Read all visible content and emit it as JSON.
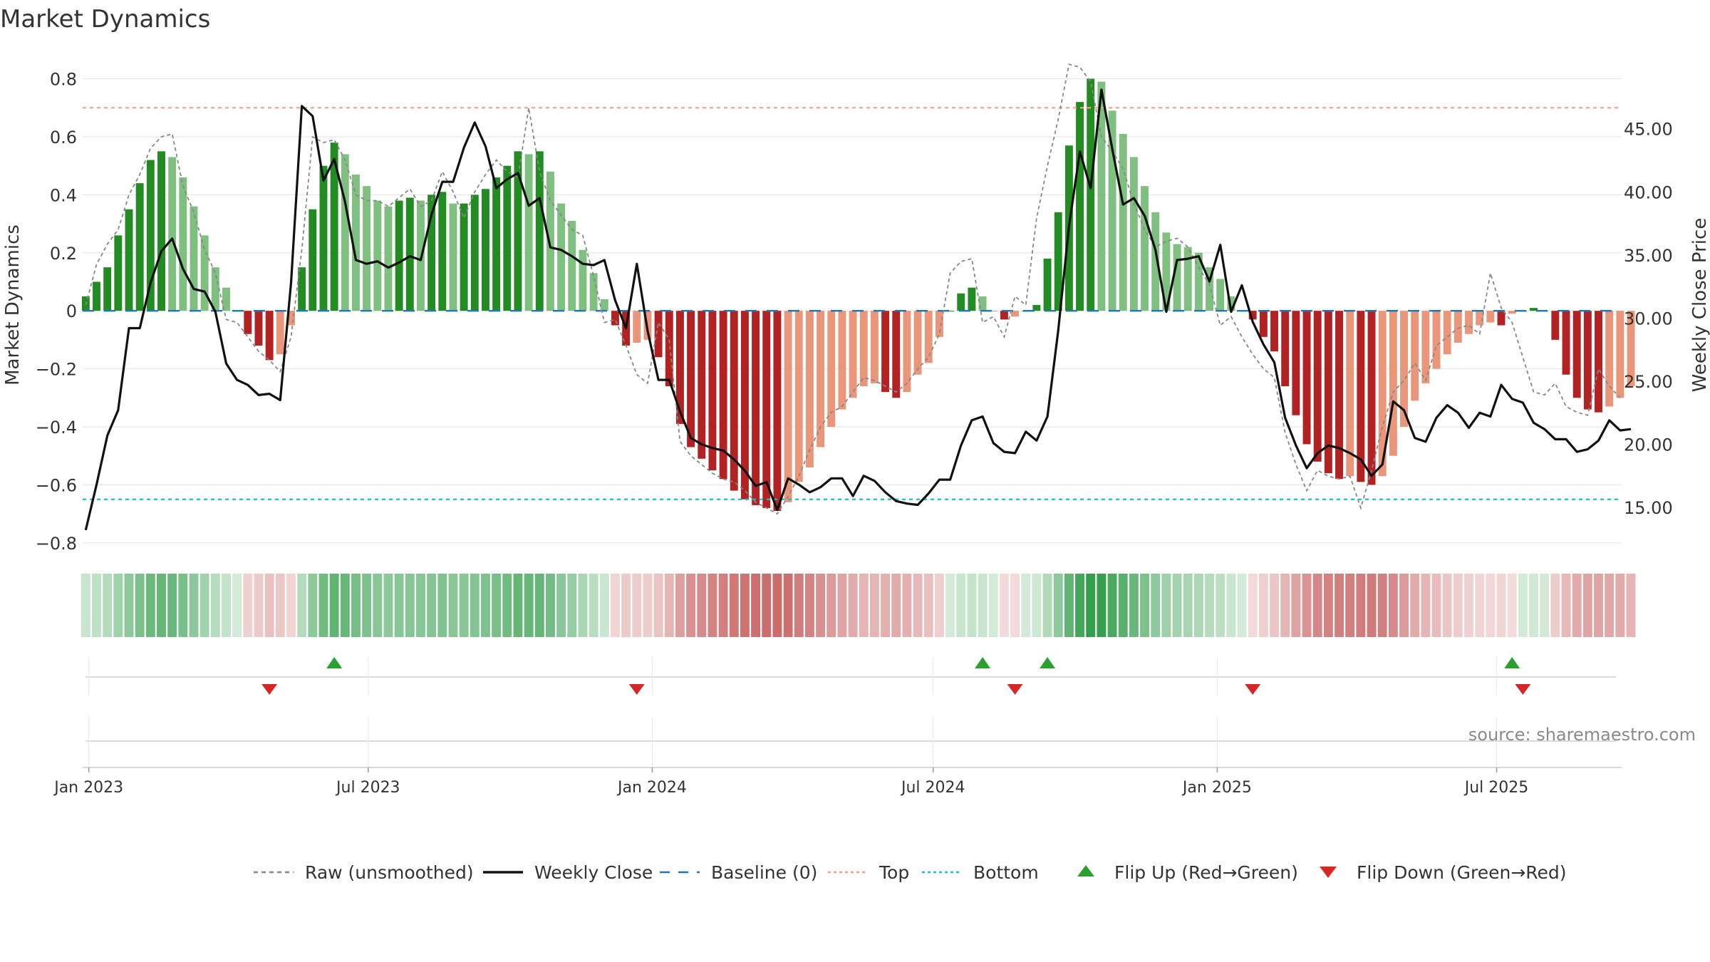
{
  "title": "Market Dynamics",
  "source": "source: sharemaestro.com",
  "colors": {
    "strong_green": "#228b22",
    "light_green": "#7fbf7f",
    "strong_red": "#b22222",
    "light_red": "#e9967a",
    "top_line": "#f4a582",
    "bottom_line": "#17becf",
    "baseline": "#1f77b4",
    "close": "#111111",
    "raw": "#888888",
    "flip_up": "#2ca02c",
    "flip_down": "#d62728"
  },
  "chart_data": {
    "type": "bar",
    "ylabel": "Market Dynamics",
    "y2label": "Weekly Close Price",
    "ylim": [
      -0.83,
      0.88
    ],
    "y2lim": [
      11.5,
      50.8
    ],
    "yticks": [
      -0.8,
      -0.6,
      -0.4,
      -0.2,
      0,
      0.2,
      0.4,
      0.6,
      0.8
    ],
    "ytick_labels": [
      "−0.8",
      "−0.6",
      "−0.4",
      "−0.2",
      "0",
      "0.2",
      "0.4",
      "0.6",
      "0.8"
    ],
    "y2ticks": [
      15,
      20,
      25,
      30,
      35,
      40,
      45
    ],
    "y2tick_labels": [
      "15.00",
      "20.00",
      "25.00",
      "30.00",
      "35.00",
      "40.00",
      "45.00"
    ],
    "xrange": [
      "2022-12-28",
      "2025-09-20"
    ],
    "xticks": [
      {
        "date": "2023-01-01",
        "label": "Jan 2023"
      },
      {
        "date": "2023-07-01",
        "label": "Jul 2023"
      },
      {
        "date": "2024-01-01",
        "label": "Jan 2024"
      },
      {
        "date": "2024-07-01",
        "label": "Jul 2024"
      },
      {
        "date": "2025-01-01",
        "label": "Jan 2025"
      },
      {
        "date": "2025-07-01",
        "label": "Jul 2025"
      }
    ],
    "top": 0.7,
    "bottom": -0.65,
    "baseline": 0,
    "start_week": "2022-12-30",
    "week_step_days": 7,
    "dynamics": [
      0.05,
      0.1,
      0.15,
      0.26,
      0.35,
      0.44,
      0.52,
      0.55,
      0.53,
      0.46,
      0.36,
      0.26,
      0.15,
      0.08,
      0,
      -0.08,
      -0.12,
      -0.17,
      -0.15,
      -0.05,
      0.15,
      0.35,
      0.5,
      0.58,
      0.54,
      0.47,
      0.43,
      0.38,
      0.36,
      0.38,
      0.39,
      0.38,
      0.4,
      0.41,
      0.37,
      0.37,
      0.4,
      0.42,
      0.46,
      0.5,
      0.55,
      0.54,
      0.55,
      0.48,
      0.37,
      0.31,
      0.21,
      0.13,
      0.04,
      -0.05,
      -0.12,
      -0.11,
      -0.1,
      -0.16,
      -0.26,
      -0.39,
      -0.47,
      -0.51,
      -0.55,
      -0.58,
      -0.62,
      -0.65,
      -0.67,
      -0.68,
      -0.69,
      -0.66,
      -0.59,
      -0.54,
      -0.47,
      -0.4,
      -0.34,
      -0.3,
      -0.26,
      -0.25,
      -0.28,
      -0.3,
      -0.28,
      -0.22,
      -0.18,
      -0.09,
      0,
      0.06,
      0.08,
      0.05,
      0,
      -0.03,
      -0.02,
      0,
      0.02,
      0.18,
      0.34,
      0.57,
      0.72,
      0.8,
      0.79,
      0.69,
      0.61,
      0.53,
      0.43,
      0.34,
      0.27,
      0.23,
      0.22,
      0.2,
      0.15,
      0.11,
      0.05,
      0,
      -0.03,
      -0.09,
      -0.14,
      -0.26,
      -0.36,
      -0.46,
      -0.52,
      -0.56,
      -0.58,
      -0.57,
      -0.59,
      -0.6,
      -0.57,
      -0.5,
      -0.4,
      -0.31,
      -0.25,
      -0.2,
      -0.15,
      -0.11,
      -0.08,
      -0.05,
      -0.04,
      -0.05,
      -0.01,
      0,
      0.01,
      0,
      -0.1,
      -0.22,
      -0.3,
      -0.34,
      -0.35,
      -0.33,
      -0.3,
      -0.26
    ],
    "raw": [
      0.02,
      0.16,
      0.23,
      0.28,
      0.4,
      0.47,
      0.56,
      0.6,
      0.61,
      0.43,
      0.34,
      0.21,
      0.13,
      -0.03,
      -0.04,
      -0.09,
      -0.14,
      -0.17,
      -0.21,
      -0.09,
      0.21,
      0.6,
      0.58,
      0.59,
      0.52,
      0.4,
      0.38,
      0.38,
      0.36,
      0.39,
      0.42,
      0.36,
      0.38,
      0.48,
      0.41,
      0.32,
      0.41,
      0.47,
      0.52,
      0.48,
      0.46,
      0.7,
      0.48,
      0.38,
      0.33,
      0.28,
      0.26,
      0.12,
      -0.04,
      -0.03,
      -0.12,
      -0.22,
      -0.25,
      -0.04,
      -0.1,
      -0.45,
      -0.5,
      -0.53,
      -0.56,
      -0.58,
      -0.59,
      -0.62,
      -0.66,
      -0.68,
      -0.7,
      -0.64,
      -0.57,
      -0.48,
      -0.4,
      -0.35,
      -0.33,
      -0.28,
      -0.23,
      -0.24,
      -0.26,
      -0.28,
      -0.25,
      -0.2,
      -0.16,
      -0.08,
      0.13,
      0.17,
      0.18,
      -0.04,
      -0.02,
      -0.09,
      0.05,
      0.02,
      0.32,
      0.5,
      0.66,
      0.85,
      0.84,
      0.79,
      0.6,
      0.55,
      0.49,
      0.37,
      0.28,
      0.22,
      0.24,
      0.25,
      0.22,
      0.15,
      0.09,
      -0.05,
      -0.02,
      -0.09,
      -0.15,
      -0.2,
      -0.23,
      -0.42,
      -0.53,
      -0.62,
      -0.55,
      -0.57,
      -0.58,
      -0.57,
      -0.68,
      -0.55,
      -0.4,
      -0.28,
      -0.24,
      -0.18,
      -0.24,
      -0.12,
      -0.09,
      -0.06,
      -0.05,
      -0.08,
      0.13,
      0.01,
      -0.04,
      -0.16,
      -0.28,
      -0.29,
      -0.25,
      -0.33,
      -0.35,
      -0.36,
      -0.2,
      -0.26,
      -0.3
    ],
    "close": [
      13.2,
      16.8,
      20.7,
      22.7,
      29.2,
      29.2,
      32.8,
      35.3,
      36.3,
      33.9,
      32.3,
      32.1,
      30.5,
      26.4,
      25.1,
      24.7,
      23.9,
      24.0,
      23.5,
      32.8,
      46.8,
      46.0,
      40.9,
      42.6,
      39.2,
      34.6,
      34.3,
      34.5,
      34.0,
      34.4,
      34.9,
      34.6,
      38.2,
      40.8,
      40.8,
      43.5,
      45.5,
      43.6,
      40.3,
      41.0,
      41.5,
      38.9,
      39.5,
      35.6,
      35.4,
      34.9,
      34.3,
      34.2,
      34.6,
      31.4,
      29.2,
      34.3,
      29.0,
      25.1,
      25.1,
      22.6,
      20.5,
      20.0,
      19.7,
      19.5,
      18.8,
      17.9,
      16.7,
      17.0,
      14.8,
      17.3,
      16.8,
      16.2,
      16.6,
      17.3,
      17.3,
      15.9,
      17.5,
      17.1,
      16.2,
      15.5,
      15.3,
      15.2,
      16.1,
      17.2,
      17.2,
      19.9,
      21.9,
      22.2,
      20.1,
      19.4,
      19.3,
      21.0,
      20.3,
      22.2,
      29.0,
      37.3,
      43.2,
      40.3,
      48.1,
      43.4,
      39.0,
      39.5,
      38.1,
      35.4,
      30.5,
      34.6,
      34.7,
      34.9,
      32.9,
      35.8,
      30.5,
      32.6,
      29.7,
      27.9,
      26.5,
      22.1,
      19.9,
      18.1,
      19.3,
      19.9,
      19.7,
      19.3,
      18.8,
      17.5,
      18.4,
      23.4,
      22.7,
      20.5,
      20.2,
      22.1,
      23.1,
      22.5,
      21.3,
      22.5,
      22.2,
      24.7,
      23.6,
      23.3,
      21.7,
      21.2,
      20.4,
      20.4,
      19.4,
      19.6,
      20.3,
      21.9,
      21.1,
      21.2
    ],
    "shading": [
      -0.2,
      -0.2,
      -0.2,
      -0.2,
      -0.2,
      -0.2,
      -0.2,
      -0.2,
      -0.2,
      -0.2,
      -0.2,
      -0.2,
      -0.2,
      -0.2,
      -0.2,
      -0.2,
      -0.2,
      -0.2,
      -0.2,
      -0.2,
      -0.2,
      -0.2,
      -0.2,
      -0.2,
      -0.2,
      -0.2,
      -0.2,
      -0.2,
      -0.2,
      -0.2,
      -0.2,
      -0.2,
      -0.2,
      -0.2,
      -0.2,
      -0.2,
      -0.2,
      -0.2,
      -0.2,
      -0.2,
      -0.2,
      -0.2,
      -0.2,
      -0.2,
      -0.2,
      -0.2,
      -0.2,
      -0.2,
      -0.2,
      -0.2,
      -0.2,
      -0.2,
      -0.2,
      -0.2,
      -0.2,
      -0.2,
      -0.2,
      -0.2,
      -0.2,
      -0.2,
      -0.2,
      -0.2,
      -0.2,
      -0.2,
      -0.2,
      -0.2,
      -0.2,
      -0.2,
      -0.2,
      -0.2,
      -0.2,
      -0.2,
      -0.2,
      -0.2,
      -0.2,
      -0.2,
      -0.2,
      -0.2,
      -0.2,
      -0.2,
      -0.2,
      -0.2,
      -0.2,
      -0.2,
      -0.2,
      -0.2,
      -0.2,
      -0.2,
      -0.2,
      -0.2,
      -0.2,
      -0.2,
      -0.2,
      -0.2,
      -0.2,
      -0.2,
      -0.2,
      -0.2,
      -0.2,
      -0.2,
      -0.2,
      -0.2,
      -0.2,
      -0.2,
      -0.2,
      -0.2,
      -0.2,
      -0.2,
      -0.2,
      -0.2,
      -0.2,
      -0.2,
      -0.2,
      -0.2,
      -0.2,
      -0.2,
      -0.2,
      -0.2,
      -0.2,
      -0.2,
      -0.2,
      -0.2,
      -0.2,
      -0.2,
      -0.2,
      -0.2,
      -0.2,
      -0.2,
      -0.2,
      -0.2,
      -0.2,
      -0.2,
      -0.2,
      -0.2,
      -0.2,
      -0.2,
      -0.2,
      -0.2,
      -0.2,
      -0.2,
      -0.2,
      -0.2,
      -0.2,
      -0.2
    ],
    "flips_up": [
      "2023-06-09",
      "2024-08-02",
      "2024-09-13",
      "2025-07-11"
    ],
    "flips_down": [
      "2023-04-28",
      "2023-12-22",
      "2024-08-23",
      "2025-01-24",
      "2025-07-18"
    ],
    "legend": [
      {
        "kind": "dashed",
        "label": "Raw (unsmoothed)",
        "color": "#888888"
      },
      {
        "kind": "solid",
        "label": "Weekly Close",
        "color": "#111111"
      },
      {
        "kind": "longdash",
        "label": "Baseline (0)",
        "color": "#1f77b4"
      },
      {
        "kind": "dotted",
        "label": "Top",
        "color": "#f4a582"
      },
      {
        "kind": "dotted",
        "label": "Bottom",
        "color": "#17becf"
      },
      {
        "kind": "up",
        "label": "Flip Up (Red→Green)",
        "color": "#2ca02c"
      },
      {
        "kind": "down",
        "label": "Flip Down (Green→Red)",
        "color": "#d62728"
      }
    ]
  }
}
